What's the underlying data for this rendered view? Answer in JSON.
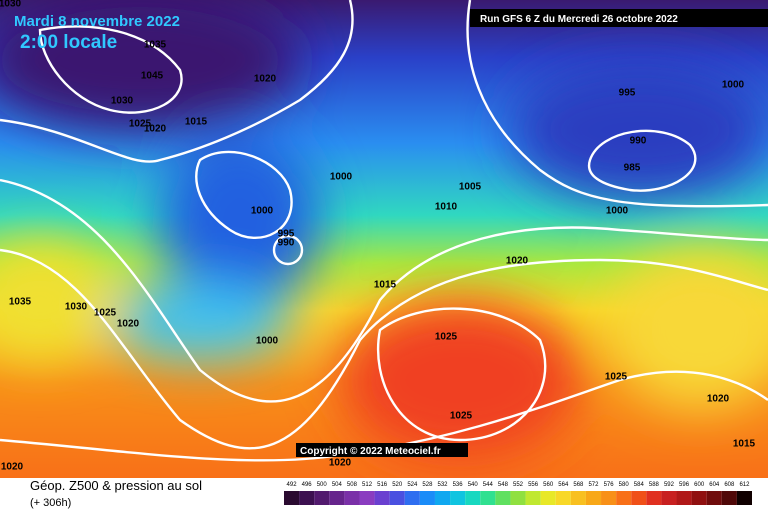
{
  "header": {
    "date": "Mardi 8 novembre 2022",
    "time": "2:00 locale",
    "run": "Run GFS 6 Z du Mercredi 26 octobre 2022"
  },
  "map": {
    "isobar_labels": [
      1030,
      1035,
      1045,
      1020,
      1030,
      1025,
      1020,
      1015,
      995,
      1000,
      990,
      985,
      1000,
      1005,
      1010,
      1000,
      1000,
      995,
      990,
      1020,
      1015,
      1035,
      1030,
      1025,
      1020,
      1000,
      1025,
      1025,
      1020,
      1025,
      1015,
      1020,
      1020
    ],
    "copyright": "Copyright © 2022 Meteociel.fr"
  },
  "footer": {
    "title": "Géop. Z500 & pression au sol",
    "lead": "(+ 306h)"
  },
  "legend": {
    "values": [
      492,
      496,
      500,
      504,
      508,
      512,
      516,
      520,
      524,
      528,
      532,
      536,
      540,
      544,
      548,
      552,
      556,
      560,
      564,
      568,
      572,
      576,
      580,
      584,
      588,
      592,
      596,
      600,
      604,
      608,
      612
    ],
    "colors": [
      "#2a0a30",
      "#3c1050",
      "#521a6e",
      "#66248c",
      "#7a30a8",
      "#8a3cc0",
      "#6a40d0",
      "#4a50e0",
      "#2f6ef0",
      "#1a8cf8",
      "#10a8f0",
      "#10c4e0",
      "#18d8c0",
      "#30e090",
      "#60e060",
      "#90e040",
      "#c0e830",
      "#e8e828",
      "#f8d828",
      "#f8c020",
      "#f8a818",
      "#f89018",
      "#f87018",
      "#f05018",
      "#e03020",
      "#c82020",
      "#b01818",
      "#901010",
      "#700c0c",
      "#500808",
      "#100000"
    ]
  }
}
